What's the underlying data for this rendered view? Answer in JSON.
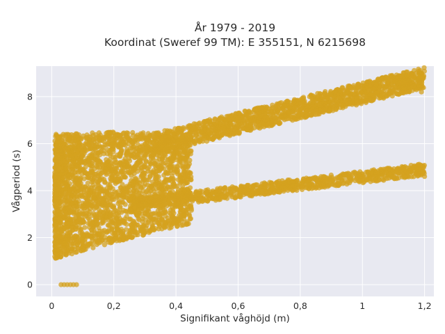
{
  "chart_data": {
    "type": "scatter",
    "title": "År 1979 - 2019",
    "subtitle": "Koordinat (Sweref 99 TM): E 355151, N 6215698",
    "xlabel": "Signifikant våghöjd (m)",
    "ylabel": "Vågperiod (s)",
    "xlim": [
      -0.05,
      1.23
    ],
    "ylim": [
      -0.5,
      9.3
    ],
    "x_ticks": [
      0,
      0.2,
      0.4,
      0.6,
      0.8,
      1,
      1.2
    ],
    "x_tick_labels": [
      "0",
      "0,2",
      "0,4",
      "0,6",
      "0,8",
      "1",
      "1,2"
    ],
    "y_ticks": [
      0,
      2,
      4,
      6,
      8
    ],
    "y_tick_labels": [
      "0",
      "2",
      "4",
      "6",
      "8"
    ],
    "grid": true,
    "marker_color": "#D4A21F",
    "background_color": "#E8E9F1",
    "point_clusters": [
      {
        "description": "dense wind-sea cloud",
        "x_range": [
          0.01,
          0.45
        ],
        "y_lower_at_x": [
          [
            0.01,
            1.1
          ],
          [
            0.2,
            1.8
          ],
          [
            0.45,
            2.6
          ]
        ],
        "y_upper_at_x": [
          [
            0.01,
            6.4
          ],
          [
            0.2,
            6.5
          ],
          [
            0.45,
            6.4
          ]
        ]
      },
      {
        "description": "upper swell band",
        "x_from": [
          0.3,
          5.9
        ],
        "x_to": [
          1.2,
          8.8
        ],
        "spread": 0.9
      },
      {
        "description": "lower band",
        "x_from": [
          0.25,
          3.4
        ],
        "x_to": [
          1.2,
          4.9
        ],
        "spread": 0.5
      }
    ],
    "series": [
      {
        "values_sample": [
          [
            0.03,
            0
          ],
          [
            0.04,
            0
          ],
          [
            0.05,
            0
          ],
          [
            0.06,
            0
          ],
          [
            0.07,
            0
          ],
          [
            0.08,
            0
          ]
        ]
      },
      {
        "values_sample": [
          [
            1.02,
            8.1
          ],
          [
            1.08,
            8.6
          ],
          [
            1.12,
            8.8
          ],
          [
            1.15,
            8.7
          ],
          [
            1.18,
            8.75
          ],
          [
            1.19,
            8.2
          ]
        ]
      },
      {
        "values_sample": [
          [
            1.0,
            4.6
          ],
          [
            1.1,
            4.8
          ],
          [
            1.18,
            4.95
          ],
          [
            1.2,
            4.6
          ]
        ]
      }
    ]
  }
}
